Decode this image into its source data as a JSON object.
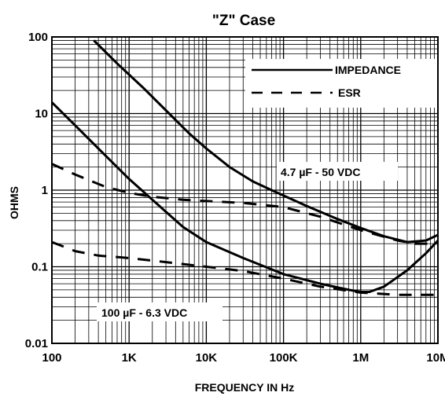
{
  "chart_data": {
    "type": "line",
    "title": "\"Z\" Case",
    "xlabel": "FREQUENCY IN Hz",
    "ylabel": "OHMS",
    "x_scale": "log",
    "y_scale": "log",
    "xlim": [
      100,
      10000000
    ],
    "ylim": [
      0.01,
      100
    ],
    "grid": true,
    "x_ticks": [
      {
        "value": 100,
        "label": "100"
      },
      {
        "value": 1000,
        "label": "1K"
      },
      {
        "value": 10000,
        "label": "10K"
      },
      {
        "value": 100000,
        "label": "100K"
      },
      {
        "value": 1000000,
        "label": "1M"
      },
      {
        "value": 10000000,
        "label": "10M"
      }
    ],
    "y_ticks": [
      {
        "value": 100,
        "label": "100"
      },
      {
        "value": 10,
        "label": "10"
      },
      {
        "value": 1,
        "label": "1"
      },
      {
        "value": 0.1,
        "label": "0.1"
      },
      {
        "value": 0.01,
        "label": "0.01"
      }
    ],
    "legend": {
      "placement": "top-right",
      "entries": [
        {
          "label": "IMPEDANCE",
          "style": "solid"
        },
        {
          "label": "ESR",
          "style": "dashed"
        }
      ]
    },
    "annotations": [
      {
        "text": "4.7 µF - 50 VDC",
        "x": 300000,
        "y": 3
      },
      {
        "text": "100 µF - 6.3 VDC",
        "x": 1700,
        "y": 0.027
      }
    ],
    "series": [
      {
        "group": "4.7 µF - 50 VDC",
        "kind": "IMPEDANCE",
        "style": "solid",
        "x": [
          350,
          700,
          1500,
          3000,
          6000,
          10000,
          20000,
          40000,
          70000,
          100000,
          200000,
          500000,
          1000000,
          2000000,
          4000000,
          7000000,
          10000000
        ],
        "y": [
          90,
          45,
          22,
          11,
          5.5,
          3.5,
          2.0,
          1.3,
          1.0,
          0.85,
          0.62,
          0.42,
          0.32,
          0.25,
          0.21,
          0.22,
          0.26
        ]
      },
      {
        "group": "4.7 µF - 50 VDC",
        "kind": "ESR",
        "style": "dashed",
        "x": [
          100,
          200,
          500,
          1000,
          2000,
          5000,
          10000,
          30000,
          100000,
          300000,
          1000000,
          3000000,
          5000000,
          10000000
        ],
        "y": [
          2.2,
          1.6,
          1.1,
          0.92,
          0.82,
          0.75,
          0.72,
          0.68,
          0.6,
          0.45,
          0.3,
          0.22,
          0.2,
          0.2
        ]
      },
      {
        "group": "100 µF - 6.3 VDC",
        "kind": "IMPEDANCE",
        "style": "solid",
        "x": [
          100,
          200,
          500,
          1000,
          2000,
          5000,
          10000,
          30000,
          100000,
          300000,
          700000,
          1000000,
          1300000,
          2000000,
          4000000,
          7000000,
          10000000
        ],
        "y": [
          14,
          7,
          2.8,
          1.4,
          0.75,
          0.33,
          0.21,
          0.13,
          0.08,
          0.06,
          0.05,
          0.047,
          0.047,
          0.055,
          0.09,
          0.15,
          0.22
        ]
      },
      {
        "group": "100 µF - 6.3 VDC",
        "kind": "ESR",
        "style": "dashed",
        "x": [
          100,
          200,
          400,
          1000,
          3000,
          10000,
          30000,
          100000,
          300000,
          1000000,
          3000000,
          10000000
        ],
        "y": [
          0.21,
          0.16,
          0.14,
          0.13,
          0.115,
          0.1,
          0.088,
          0.07,
          0.055,
          0.046,
          0.043,
          0.043
        ]
      }
    ]
  }
}
